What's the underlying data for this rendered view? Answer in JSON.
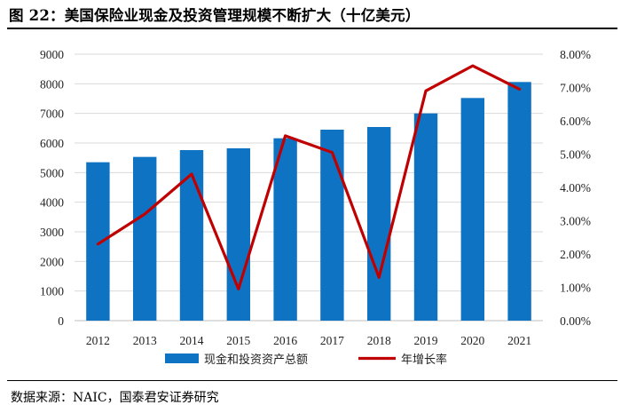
{
  "header": {
    "title": "图 22：美国保险业现金及投资管理规模不断扩大（十亿美元）"
  },
  "footer": {
    "source": "数据来源：NAIC，国泰君安证券研究"
  },
  "colors": {
    "bar": "#0f73c3",
    "line": "#c00000",
    "grid": "#d9d9d9"
  },
  "chart_data": {
    "type": "bar",
    "title": "美国保险业现金及投资管理规模不断扩大（十亿美元）",
    "categories": [
      "2012",
      "2013",
      "2014",
      "2015",
      "2016",
      "2017",
      "2018",
      "2019",
      "2020",
      "2021"
    ],
    "series": [
      {
        "name": "现金和投资资产总额",
        "type": "bar",
        "axis": "left",
        "values": [
          5350,
          5530,
          5760,
          5820,
          6160,
          6450,
          6540,
          7000,
          7520,
          8060
        ]
      },
      {
        "name": "年增长率",
        "type": "line",
        "axis": "right",
        "values": [
          2.3,
          3.2,
          4.4,
          0.95,
          5.55,
          5.05,
          1.3,
          6.9,
          7.65,
          6.95
        ]
      }
    ],
    "y_left": {
      "ylim": [
        0,
        9000
      ],
      "ticks": [
        0,
        1000,
        2000,
        3000,
        4000,
        5000,
        6000,
        7000,
        8000,
        9000
      ],
      "tick_labels": [
        "0",
        "1000",
        "2000",
        "3000",
        "4000",
        "5000",
        "6000",
        "7000",
        "8000",
        "9000"
      ]
    },
    "y_right": {
      "ylim": [
        0,
        8
      ],
      "ticks": [
        0,
        1,
        2,
        3,
        4,
        5,
        6,
        7,
        8
      ],
      "tick_labels": [
        "0.00%",
        "1.00%",
        "2.00%",
        "3.00%",
        "4.00%",
        "5.00%",
        "6.00%",
        "7.00%",
        "8.00%"
      ]
    },
    "grid": true,
    "legend": {
      "position": "bottom",
      "entries": [
        "现金和投资资产总额",
        "年增长率"
      ]
    }
  }
}
